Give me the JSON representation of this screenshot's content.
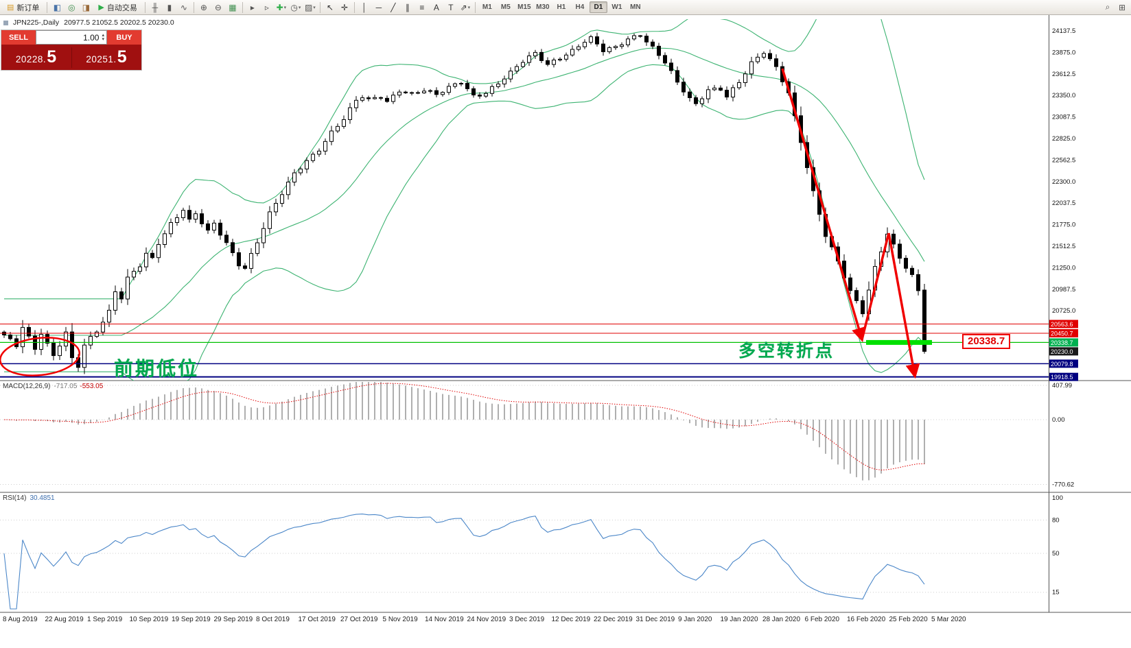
{
  "toolbar": {
    "active_timeframe": "D1",
    "caret_glyph": "▾",
    "items": [
      {
        "kind": "button",
        "name": "new-order-button",
        "icon": "new-order-icon",
        "glyph": "▤",
        "color": "#d79b2a",
        "label": "新订单"
      },
      {
        "kind": "sep"
      },
      {
        "kind": "icon",
        "name": "market-watch-button",
        "icon": "market-watch-icon",
        "glyph": "◧",
        "color": "#4a74a8"
      },
      {
        "kind": "icon",
        "name": "navigator-button",
        "icon": "navigator-icon",
        "glyph": "◎",
        "color": "#3f8f4f"
      },
      {
        "kind": "icon",
        "name": "terminal-button",
        "icon": "terminal-icon",
        "glyph": "◨",
        "color": "#9a6a3a"
      },
      {
        "kind": "button",
        "name": "autotrading-button",
        "icon": "autotrading-icon",
        "glyph": "▶",
        "color": "#2fae4a",
        "label": "自动交易"
      },
      {
        "kind": "sep"
      },
      {
        "kind": "icon",
        "name": "bar-chart-button",
        "icon": "bar-chart-icon",
        "glyph": "╫",
        "color": "#555555"
      },
      {
        "kind": "icon",
        "name": "candlestick-chart-button",
        "icon": "candlestick-chart-icon",
        "glyph": "▮",
        "color": "#555555"
      },
      {
        "kind": "icon",
        "name": "line-chart-button",
        "icon": "line-chart-icon",
        "glyph": "∿",
        "color": "#555555"
      },
      {
        "kind": "sep"
      },
      {
        "kind": "icon",
        "name": "zoom-in-button",
        "icon": "zoom-in-icon",
        "glyph": "⊕",
        "color": "#555555"
      },
      {
        "kind": "icon",
        "name": "zoom-out-button",
        "icon": "zoom-out-icon",
        "glyph": "⊖",
        "color": "#555555"
      },
      {
        "kind": "icon",
        "name": "tile-windows-button",
        "icon": "tile-windows-icon",
        "glyph": "▦",
        "color": "#3f8f4f"
      },
      {
        "kind": "sep"
      },
      {
        "kind": "icon",
        "name": "auto-scroll-button",
        "icon": "auto-scroll-icon",
        "glyph": "▸",
        "color": "#555555"
      },
      {
        "kind": "icon",
        "name": "chart-shift-button",
        "icon": "chart-shift-icon",
        "glyph": "▹",
        "color": "#555555"
      },
      {
        "kind": "icon-drop",
        "name": "indicators-button",
        "icon": "indicators-icon",
        "glyph": "✚",
        "color": "#2fae4a"
      },
      {
        "kind": "icon-drop",
        "name": "periods-button",
        "icon": "periods-icon",
        "glyph": "◷",
        "color": "#555555"
      },
      {
        "kind": "icon-drop",
        "name": "templates-button",
        "icon": "templates-icon",
        "glyph": "▨",
        "color": "#555555"
      },
      {
        "kind": "sep"
      },
      {
        "kind": "icon",
        "name": "cursor-button",
        "icon": "cursor-icon",
        "glyph": "↖",
        "color": "#333333"
      },
      {
        "kind": "icon",
        "name": "crosshair-button",
        "icon": "crosshair-icon",
        "glyph": "✛",
        "color": "#333333"
      },
      {
        "kind": "sep"
      },
      {
        "kind": "icon",
        "name": "vertical-line-button",
        "icon": "vertical-line-icon",
        "glyph": "│",
        "color": "#333333"
      },
      {
        "kind": "icon",
        "name": "horizontal-line-button",
        "icon": "horizontal-line-icon",
        "glyph": "─",
        "color": "#333333"
      },
      {
        "kind": "icon",
        "name": "trendline-button",
        "icon": "trendline-icon",
        "glyph": "╱",
        "color": "#333333"
      },
      {
        "kind": "icon",
        "name": "equidistant-channel-button",
        "icon": "equidistant-channel-icon",
        "glyph": "∥",
        "color": "#333333"
      },
      {
        "kind": "icon",
        "name": "fibonacci-button",
        "icon": "fibonacci-icon",
        "glyph": "≡",
        "color": "#333333"
      },
      {
        "kind": "icon",
        "name": "text-button",
        "icon": "text-icon",
        "glyph": "A",
        "color": "#333333"
      },
      {
        "kind": "icon",
        "name": "text-label-button",
        "icon": "text-label-icon",
        "glyph": "T",
        "color": "#333333"
      },
      {
        "kind": "icon-drop",
        "name": "arrows-button",
        "icon": "arrows-icon",
        "glyph": "⇗",
        "color": "#333333"
      },
      {
        "kind": "sep"
      },
      {
        "kind": "tf",
        "label": "M1"
      },
      {
        "kind": "tf",
        "label": "M5"
      },
      {
        "kind": "tf",
        "label": "M15"
      },
      {
        "kind": "tf",
        "label": "M30"
      },
      {
        "kind": "tf",
        "label": "H1"
      },
      {
        "kind": "tf",
        "label": "H4"
      },
      {
        "kind": "tf",
        "label": "D1"
      },
      {
        "kind": "tf",
        "label": "W1"
      },
      {
        "kind": "tf",
        "label": "MN"
      },
      {
        "kind": "spacer"
      },
      {
        "kind": "icon",
        "name": "search-button",
        "icon": "search-icon",
        "glyph": "⌕",
        "color": "#555555"
      },
      {
        "kind": "icon",
        "name": "fullscreen-button",
        "icon": "fullscreen-icon",
        "glyph": "⊞",
        "color": "#555555"
      }
    ]
  },
  "chart": {
    "symbol_period": "JPN225-,Daily",
    "ohlc_text": "20977.5 21052.5 20202.5 20230.0"
  },
  "trade_panel": {
    "sell_label": "SELL",
    "buy_label": "BUY",
    "volume": "1.00",
    "spinner_up": "▴",
    "spinner_down": "▾",
    "sell_price": "20228.",
    "sell_price_big": "5",
    "buy_price": "20251.",
    "buy_price_big": "5"
  },
  "annotations": {
    "prev_low": "前期低位",
    "turning_point": "多空转折点",
    "level_label": "20338.7"
  },
  "price_scale": {
    "labels": [
      "24137.5",
      "23875.0",
      "23612.5",
      "23350.0",
      "23087.5",
      "22825.0",
      "22562.5",
      "22300.0",
      "22037.5",
      "21775.0",
      "21512.5",
      "21250.0",
      "20987.5",
      "20725.0"
    ],
    "tags": [
      {
        "text": "20563.6",
        "price": 20563.6,
        "bg": "#e00000"
      },
      {
        "text": "20450.7",
        "price": 20450.7,
        "bg": "#e00000"
      },
      {
        "text": "20338.7",
        "price": 20338.7,
        "bg": "#00b050"
      },
      {
        "text": "20230.0",
        "price": 20230.0,
        "bg": "#1a1a1a"
      },
      {
        "text": "20079.8",
        "price": 20079.8,
        "bg": "#000080"
      },
      {
        "text": "19918.5",
        "price": 19918.5,
        "bg": "#000080"
      }
    ]
  },
  "levels": [
    {
      "price": 20563.6,
      "color": "#e00000",
      "width": 1
    },
    {
      "price": 20450.7,
      "color": "#e00000",
      "width": 1
    },
    {
      "price": 20338.7,
      "color": "#00c000",
      "width": 1.2
    },
    {
      "price": 20079.8,
      "color": "#000080",
      "width": 1.5
    },
    {
      "price": 19918.5,
      "color": "#000080",
      "width": 2
    }
  ],
  "macd": {
    "name": "MACD(12,26,9)",
    "value_main": "-717.05",
    "value_signal": "-553.05",
    "axis": [
      407.99,
      0,
      -770.62
    ],
    "axis_labels": [
      "407.99",
      "0.00",
      "-770.62"
    ]
  },
  "rsi": {
    "name": "RSI(14)",
    "value": "30.4851",
    "axis": [
      100,
      80,
      50,
      15
    ],
    "axis_labels": [
      "100",
      "80",
      "50",
      "15"
    ]
  },
  "dates": [
    "8 Aug 2019",
    "22 Aug 2019",
    "1 Sep 2019",
    "10 Sep 2019",
    "19 Sep 2019",
    "29 Sep 2019",
    "8 Oct 2019",
    "17 Oct 2019",
    "27 Oct 2019",
    "5 Nov 2019",
    "14 Nov 2019",
    "24 Nov 2019",
    "3 Dec 2019",
    "12 Dec 2019",
    "22 Dec 2019",
    "31 Dec 2019",
    "9 Jan 2020",
    "19 Jan 2020",
    "28 Jan 2020",
    "6 Feb 2020",
    "16 Feb 2020",
    "25 Feb 2020",
    "5 Mar 2020"
  ],
  "chart_data": {
    "type": "candlestick",
    "symbol": "JPN225-",
    "timeframe": "Daily",
    "candle_count": 150,
    "last_candle": [
      20977.5,
      21052.5,
      20202.5,
      20230.0
    ],
    "bollinger": {
      "period": 20,
      "deviation": 2
    },
    "price_range_visible": [
      19890,
      24280
    ],
    "close_anchors": [
      [
        0,
        20430
      ],
      [
        2,
        20290
      ],
      [
        3,
        20520
      ],
      [
        5,
        20250
      ],
      [
        6,
        20450
      ],
      [
        8,
        20180
      ],
      [
        10,
        20470
      ],
      [
        11,
        20150
      ],
      [
        12,
        20060
      ],
      [
        13,
        20310
      ],
      [
        15,
        20470
      ],
      [
        17,
        20700
      ],
      [
        18,
        20950
      ],
      [
        19,
        20880
      ],
      [
        20,
        21120
      ],
      [
        22,
        21290
      ],
      [
        23,
        21430
      ],
      [
        24,
        21370
      ],
      [
        25,
        21560
      ],
      [
        27,
        21780
      ],
      [
        29,
        21950
      ],
      [
        30,
        21810
      ],
      [
        31,
        21900
      ],
      [
        33,
        21690
      ],
      [
        34,
        21790
      ],
      [
        36,
        21560
      ],
      [
        38,
        21300
      ],
      [
        39,
        21250
      ],
      [
        41,
        21560
      ],
      [
        43,
        21900
      ],
      [
        45,
        22150
      ],
      [
        47,
        22400
      ],
      [
        49,
        22560
      ],
      [
        51,
        22700
      ],
      [
        53,
        22900
      ],
      [
        55,
        23060
      ],
      [
        57,
        23280
      ],
      [
        58,
        23330
      ],
      [
        59,
        23290
      ],
      [
        61,
        23340
      ],
      [
        62,
        23280
      ],
      [
        64,
        23420
      ],
      [
        66,
        23370
      ],
      [
        68,
        23410
      ],
      [
        70,
        23350
      ],
      [
        72,
        23440
      ],
      [
        74,
        23520
      ],
      [
        76,
        23350
      ],
      [
        78,
        23390
      ],
      [
        80,
        23500
      ],
      [
        82,
        23620
      ],
      [
        84,
        23760
      ],
      [
        86,
        23860
      ],
      [
        88,
        23730
      ],
      [
        90,
        23820
      ],
      [
        92,
        23900
      ],
      [
        94,
        24010
      ],
      [
        95,
        24040
      ],
      [
        97,
        23890
      ],
      [
        99,
        23930
      ],
      [
        101,
        24040
      ],
      [
        103,
        24100
      ],
      [
        105,
        23940
      ],
      [
        107,
        23760
      ],
      [
        109,
        23500
      ],
      [
        111,
        23300
      ],
      [
        112,
        23230
      ],
      [
        114,
        23420
      ],
      [
        116,
        23440
      ],
      [
        117,
        23350
      ],
      [
        119,
        23520
      ],
      [
        121,
        23740
      ],
      [
        123,
        23870
      ],
      [
        125,
        23680
      ],
      [
        127,
        23380
      ],
      [
        129,
        22800
      ],
      [
        131,
        22180
      ],
      [
        133,
        21650
      ],
      [
        135,
        21320
      ],
      [
        137,
        20950
      ],
      [
        139,
        20700
      ],
      [
        141,
        21250
      ],
      [
        143,
        21680
      ],
      [
        145,
        21380
      ],
      [
        147,
        21150
      ],
      [
        148,
        20960
      ],
      [
        149,
        20230
      ]
    ]
  }
}
